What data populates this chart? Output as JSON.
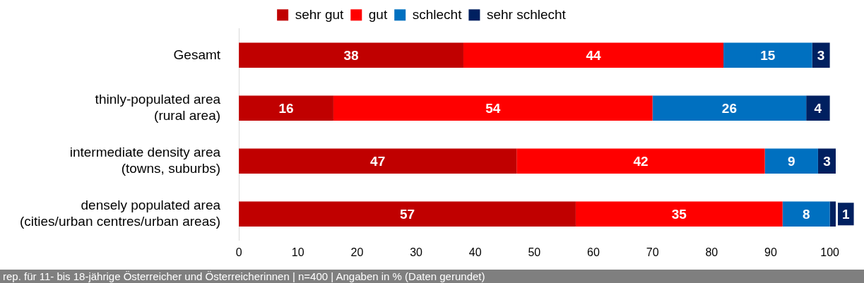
{
  "chart_data": {
    "type": "bar",
    "orientation": "horizontal",
    "stacked": true,
    "data_labels": true,
    "grid": false,
    "legend": "top",
    "categories": [
      "Gesamt",
      "thinly-populated area\n(rural area)",
      "intermediate density area\n(towns, suburbs)",
      "densely populated area\n(cities/urban centres/urban areas)"
    ],
    "series": [
      {
        "name": "sehr gut",
        "color": "#c00000",
        "values": [
          38,
          16,
          47,
          57
        ]
      },
      {
        "name": "gut",
        "color": "#ff0000",
        "values": [
          44,
          54,
          42,
          35
        ]
      },
      {
        "name": "schlecht",
        "color": "#0070c0",
        "values": [
          15,
          26,
          9,
          8
        ]
      },
      {
        "name": "sehr schlecht",
        "color": "#002060",
        "values": [
          3,
          4,
          3,
          1
        ]
      }
    ],
    "xlim": [
      0,
      101
    ],
    "xticks": [
      0,
      10,
      20,
      30,
      40,
      50,
      60,
      70,
      80,
      90,
      100
    ],
    "annotations": [
      "rep. für 11- bis 18-jährige Österreicher und Österreicherinnen | n=400 | Angaben in % (Daten gerundet)"
    ]
  }
}
